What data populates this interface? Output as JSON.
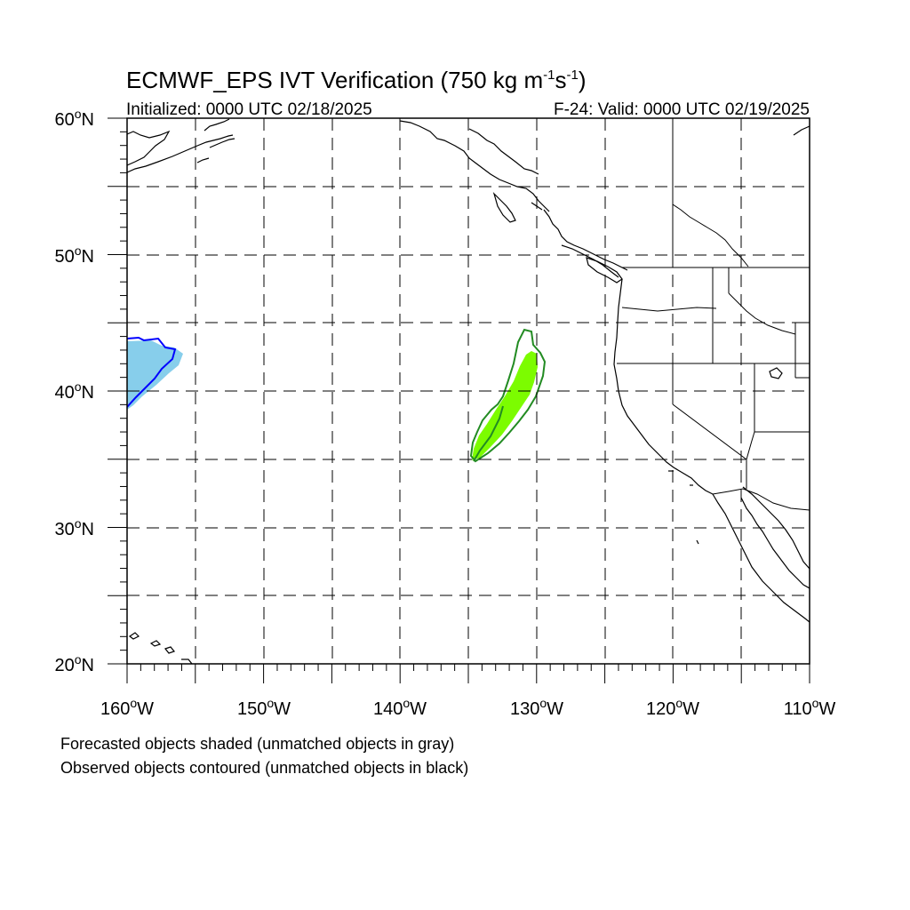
{
  "figure": {
    "title_main": "ECMWF_EPS IVT Verification (750 kg m",
    "title_sup1": "-1",
    "title_mid": "s",
    "title_sup2": "-1",
    "title_end": ")",
    "initialized": "Initialized: 0000 UTC 02/18/2025",
    "valid": "F-24: Valid: 0000 UTC 02/19/2025",
    "lat_labels": [
      "60",
      "50",
      "40",
      "30",
      "20"
    ],
    "lon_labels": [
      "160",
      "150",
      "140",
      "130",
      "120",
      "110"
    ],
    "lat_suffix": "N",
    "lon_suffix": "W",
    "degree_symbol": "o",
    "note_forecast": "Forecasted objects shaded (unmatched objects in gray)",
    "note_observed": "Observed objects contoured (unmatched objects in black)"
  },
  "map_data": {
    "projection": "cylindrical-equidistant",
    "lon_range": [
      -160,
      -110
    ],
    "lat_range": [
      20,
      60
    ],
    "grid_lines": "dashed, every 5 degrees",
    "objects": [
      {
        "kind": "forecast-shaded",
        "color": "#87ceeb",
        "region_lon": [
          -160,
          -156
        ],
        "region_lat": [
          38.5,
          44
        ]
      },
      {
        "kind": "observed-contour",
        "color": "#0000ff",
        "region_lon": [
          -160,
          -156.5
        ],
        "region_lat": [
          38.8,
          44
        ]
      },
      {
        "kind": "forecast-shaded",
        "color": "#7cfc00",
        "region_lon": [
          -134.8,
          -129.8
        ],
        "region_lat": [
          35,
          43
        ]
      },
      {
        "kind": "observed-contour",
        "color": "#228b22",
        "region_lon": [
          -135,
          -129.2
        ],
        "region_lat": [
          35,
          44.6
        ]
      }
    ],
    "colors": {
      "coastline": "#000000",
      "grid": "#000000",
      "blue_shade": "#87ceeb",
      "blue_contour": "#0000ff",
      "green_shade": "#7cfc00",
      "green_contour": "#228b22"
    }
  }
}
